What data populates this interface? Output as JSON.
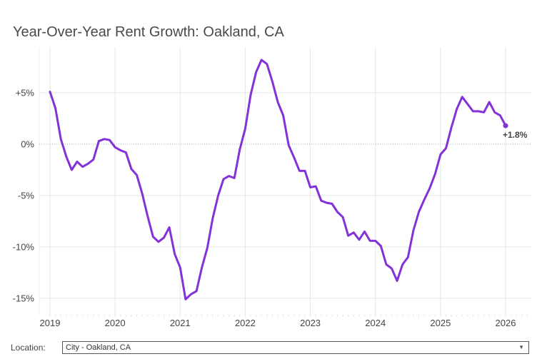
{
  "title": "Year-Over-Year Rent Growth: Oakland, CA",
  "location": {
    "label": "Location:",
    "selected": "City - Oakland, CA",
    "arrow_icon": "triangle-down"
  },
  "colors": {
    "line": "#8331d8",
    "grid": "#e6e6e6",
    "zero": "#9a9a9a"
  },
  "chart_data": {
    "type": "line",
    "title": "Year-Over-Year Rent Growth: Oakland, CA",
    "xlabel": "",
    "ylabel": "",
    "xlim": [
      2018.85,
      2026.4
    ],
    "ylim": [
      -16.5,
      9.5
    ],
    "grid": true,
    "x_ticks": [
      2019,
      2020,
      2021,
      2022,
      2023,
      2024,
      2025,
      2026
    ],
    "x_tick_labels": [
      "2019",
      "2020",
      "2021",
      "2022",
      "2023",
      "2024",
      "2025",
      "2026"
    ],
    "y_ticks": [
      5,
      0,
      -5,
      -10,
      -15
    ],
    "y_tick_labels": [
      "+5%",
      "0%",
      "-5%",
      "-10%",
      "-15%"
    ],
    "end_label": "+1.8%",
    "series": [
      {
        "name": "Oakland, CA",
        "start": "2019-01",
        "frequency": "monthly",
        "values": [
          5.1,
          3.5,
          0.5,
          -1.2,
          -2.5,
          -1.7,
          -2.2,
          -1.9,
          -1.5,
          0.3,
          0.5,
          0.4,
          -0.3,
          -0.6,
          -0.8,
          -2.4,
          -3.0,
          -4.8,
          -7.0,
          -9.0,
          -9.5,
          -9.1,
          -8.1,
          -10.7,
          -12.0,
          -15.1,
          -14.6,
          -14.3,
          -12.0,
          -10.1,
          -7.2,
          -5.0,
          -3.4,
          -3.1,
          -3.3,
          -0.5,
          1.5,
          4.8,
          7.0,
          8.2,
          7.8,
          6.1,
          4.1,
          2.8,
          -0.1,
          -1.3,
          -2.6,
          -2.6,
          -4.2,
          -4.1,
          -5.5,
          -5.7,
          -5.8,
          -6.6,
          -7.1,
          -8.9,
          -8.6,
          -9.3,
          -8.5,
          -9.4,
          -9.4,
          -9.9,
          -11.7,
          -12.1,
          -13.3,
          -11.7,
          -11.0,
          -8.4,
          -6.6,
          -5.4,
          -4.3,
          -2.9,
          -1.0,
          -0.4,
          1.6,
          3.4,
          4.6,
          3.9,
          3.2,
          3.2,
          3.1,
          4.1,
          3.1,
          2.8,
          1.8
        ]
      }
    ]
  }
}
